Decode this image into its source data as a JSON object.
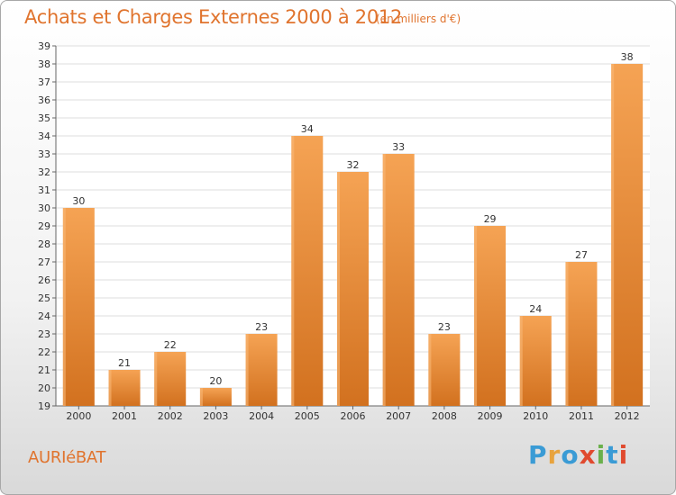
{
  "header": {
    "title": "Achats et Charges Externes 2000 à 2012",
    "subtitle": "(en milliers d'€)"
  },
  "footer": {
    "place": "AURIéBAT",
    "logo_text": "Proxiti",
    "logo_colors": [
      "#3a9bd5",
      "#e8a33d",
      "#3a9bd5",
      "#e04a2f",
      "#6ab04c",
      "#3a9bd5",
      "#e04a2f"
    ]
  },
  "colors": {
    "bar_top": "#f5a354",
    "bar_bottom": "#d2711f",
    "grid": "#dddddd",
    "title": "#e0742e"
  },
  "chart_data": {
    "type": "bar",
    "title": "Achats et Charges Externes 2000 à 2012",
    "subtitle": "(en milliers d'€)",
    "categories": [
      "2000",
      "2001",
      "2002",
      "2003",
      "2004",
      "2005",
      "2006",
      "2007",
      "2008",
      "2009",
      "2010",
      "2011",
      "2012"
    ],
    "values": [
      30,
      21,
      22,
      20,
      23,
      34,
      32,
      33,
      23,
      29,
      24,
      27,
      38
    ],
    "ylim": [
      19,
      39
    ],
    "yticks": [
      19,
      20,
      21,
      22,
      23,
      24,
      25,
      26,
      27,
      28,
      29,
      30,
      31,
      32,
      33,
      34,
      35,
      36,
      37,
      38,
      39
    ],
    "grid": true,
    "data_labels": true
  }
}
